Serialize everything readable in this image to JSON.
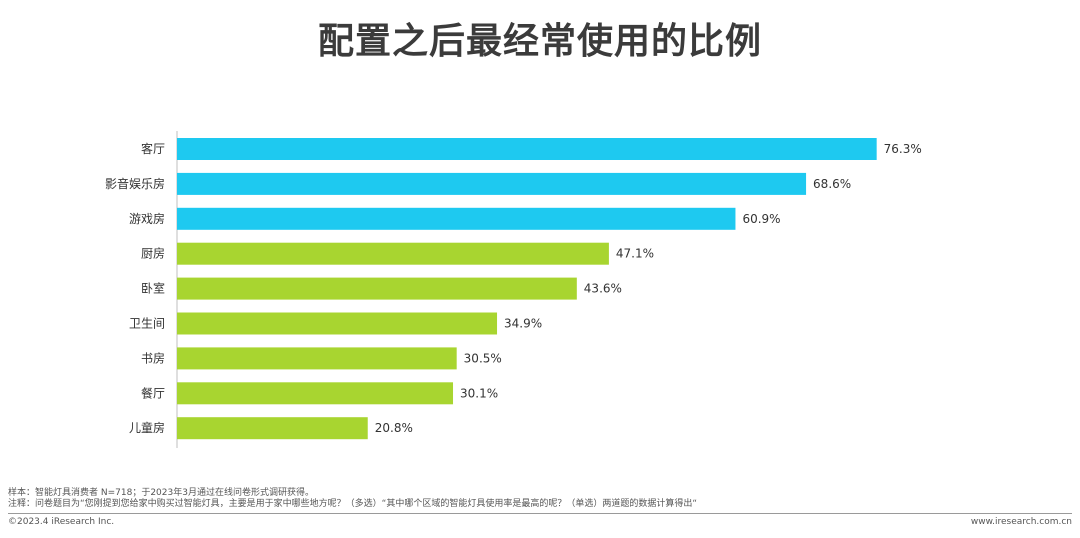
{
  "chart_data": {
    "type": "bar",
    "orientation": "horizontal",
    "title": "配置之后最经常使用的比例",
    "categories": [
      "客厅",
      "影音娱乐房",
      "游戏房",
      "厨房",
      "卧室",
      "卫生间",
      "书房",
      "餐厅",
      "儿童房"
    ],
    "values": [
      76.3,
      68.6,
      60.9,
      47.1,
      43.6,
      34.9,
      30.5,
      30.1,
      20.8
    ],
    "value_labels": [
      "76.3%",
      "68.6%",
      "60.9%",
      "47.1%",
      "43.6%",
      "34.9%",
      "30.5%",
      "30.1%",
      "20.8%"
    ],
    "unit": "%",
    "xlim": [
      0,
      100
    ],
    "grid": false,
    "colors": [
      "#1ec9f0",
      "#1ec9f0",
      "#1ec9f0",
      "#a8d530",
      "#a8d530",
      "#a8d530",
      "#a8d530",
      "#a8d530",
      "#a8d530"
    ]
  },
  "notes": {
    "sample": "样本：智能灯具消费者 N=718；于2023年3月通过在线问卷形式调研获得。",
    "note": "注释：问卷题目为“您刚提到您给家中购买过智能灯具，主要是用于家中哪些地方呢？（多选）“其中哪个区域的智能灯具使用率是最高的呢？（单选）两道题的数据计算得出“"
  },
  "footer": {
    "copyright": "©2023.4 iResearch Inc.",
    "website": "www.iresearch.com.cn"
  }
}
